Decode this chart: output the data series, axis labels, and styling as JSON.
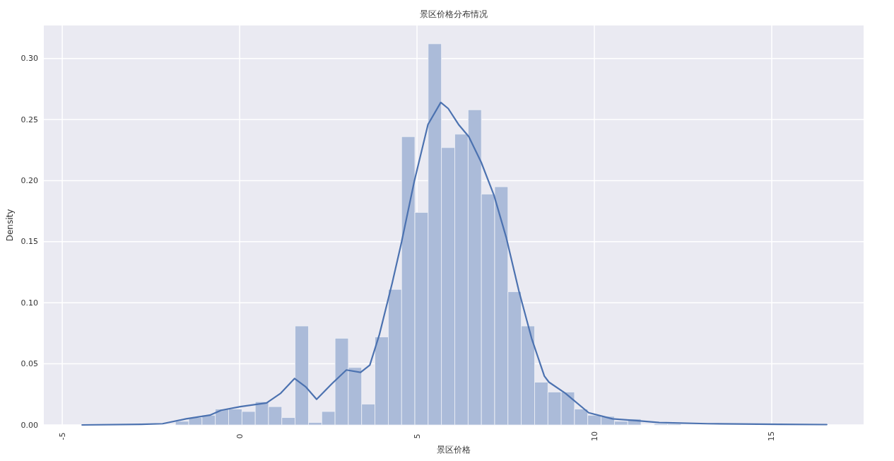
{
  "chart_data": {
    "type": "histogram",
    "title": "景区价格分布情况",
    "xlabel": "景区价格",
    "ylabel": "Density",
    "xlim": [
      -5.52,
      17.59
    ],
    "ylim": [
      0,
      0.327
    ],
    "xticks": [
      -5,
      0,
      5,
      10,
      15
    ],
    "yticks": [
      {
        "value": 0,
        "label": "0.00"
      },
      {
        "value": 0.05,
        "label": "0.05"
      },
      {
        "value": 0.1,
        "label": "0.10"
      },
      {
        "value": 0.15,
        "label": "0.15"
      },
      {
        "value": 0.2,
        "label": "0.20"
      },
      {
        "value": 0.25,
        "label": "0.25"
      },
      {
        "value": 0.3,
        "label": "0.30"
      }
    ],
    "grid": true,
    "series": [
      {
        "type": "histogram",
        "color": "#abbbd9",
        "bins": [
          -1.81,
          -1.435,
          -1.06,
          -0.685,
          -0.31,
          0.065,
          0.44,
          0.815,
          1.19,
          1.565,
          1.94,
          2.315,
          2.69,
          3.065,
          3.44,
          3.815,
          4.19,
          4.565,
          4.94,
          5.315,
          5.69,
          6.065,
          6.44,
          6.815,
          7.19,
          7.565,
          7.94,
          8.315,
          8.69,
          9.065,
          9.44,
          9.815,
          10.19,
          10.565,
          10.94,
          11.315,
          11.69,
          12.065,
          12.44
        ],
        "values": [
          0.003,
          0.006,
          0.008,
          0.013,
          0.013,
          0.011,
          0.019,
          0.015,
          0.006,
          0.081,
          0.002,
          0.011,
          0.071,
          0.047,
          0.017,
          0.072,
          0.111,
          0.236,
          0.174,
          0.312,
          0.227,
          0.238,
          0.258,
          0.189,
          0.195,
          0.109,
          0.081,
          0.035,
          0.027,
          0.027,
          0.013,
          0.008,
          0.007,
          0.003,
          0.005,
          0,
          0.001,
          0.001
        ]
      },
      {
        "type": "line",
        "color": "#4c72b0",
        "x": [
          -4.44,
          -2.77,
          -2.17,
          -1.51,
          -0.84,
          -0.52,
          0.02,
          0.76,
          1.16,
          1.55,
          1.87,
          2.17,
          2.61,
          3.01,
          3.41,
          3.67,
          3.94,
          4.18,
          4.3,
          4.56,
          4.92,
          5.31,
          5.67,
          5.88,
          6.17,
          6.46,
          6.81,
          7.17,
          7.52,
          7.87,
          8.23,
          8.59,
          8.72,
          9.18,
          9.84,
          10.51,
          11.18,
          11.83,
          13.2,
          15.2,
          16.55
        ],
        "values": [
          0,
          0.0005,
          0.001,
          0.005,
          0.008,
          0.012,
          0.015,
          0.018,
          0.026,
          0.038,
          0.031,
          0.021,
          0.034,
          0.045,
          0.043,
          0.049,
          0.074,
          0.102,
          0.116,
          0.149,
          0.199,
          0.246,
          0.264,
          0.259,
          0.246,
          0.236,
          0.215,
          0.188,
          0.153,
          0.11,
          0.071,
          0.04,
          0.035,
          0.026,
          0.01,
          0.005,
          0.0035,
          0.002,
          0.001,
          0.0005,
          0.0003
        ]
      }
    ]
  }
}
